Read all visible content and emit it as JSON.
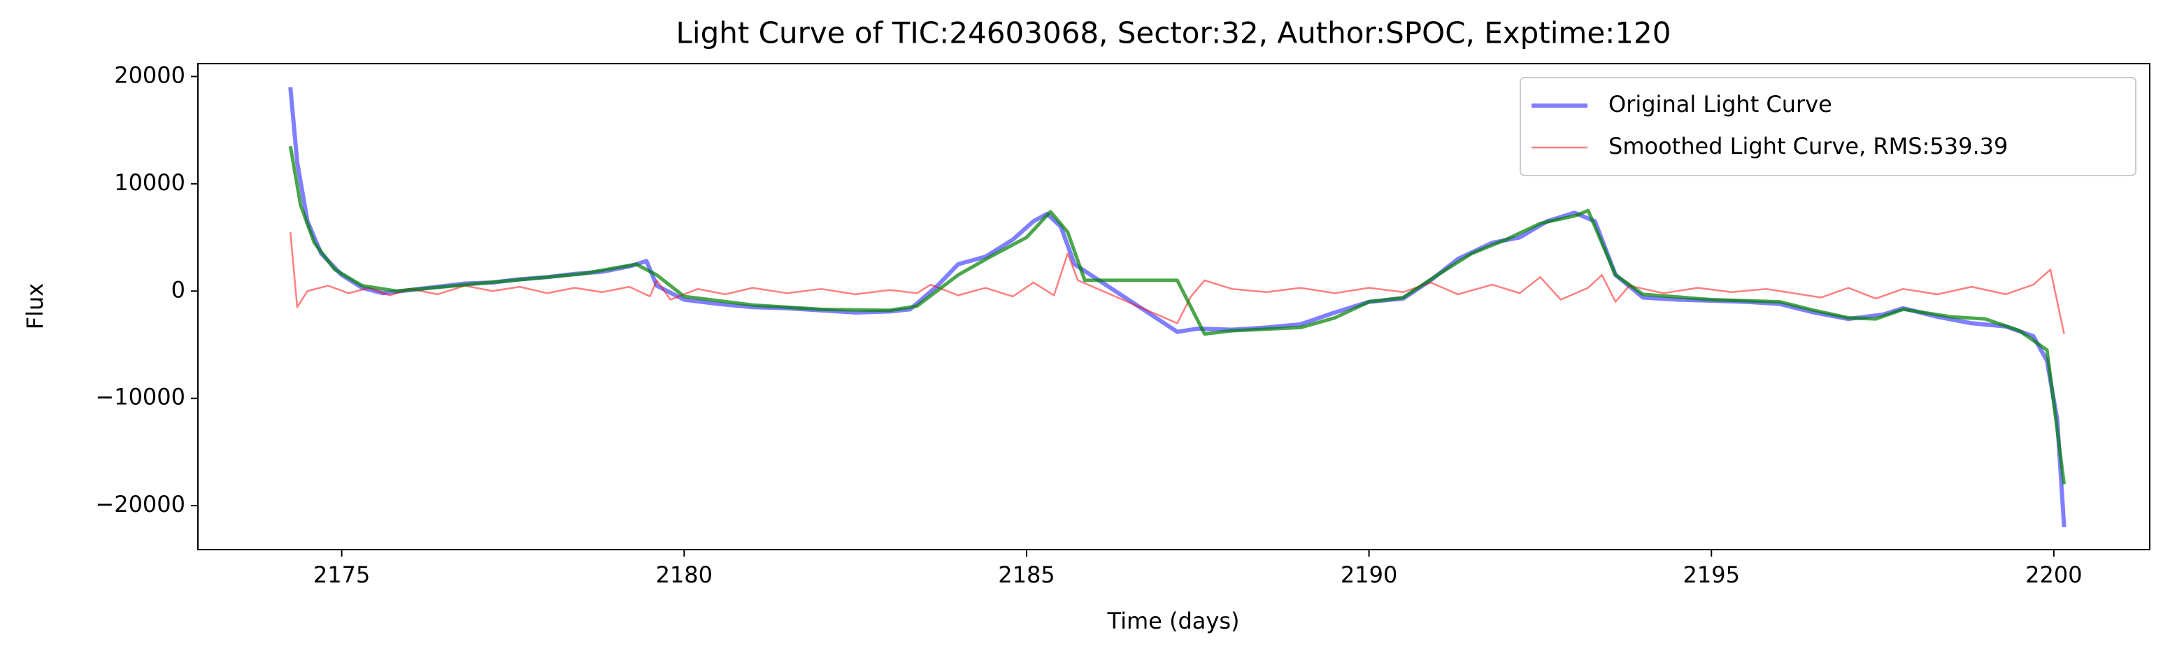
{
  "chart_data": {
    "type": "line",
    "title": "Light Curve of TIC:24603068, Sector:32, Author:SPOC, Exptime:120",
    "x_label": "Time (days)",
    "y_label": "Flux",
    "xlim": [
      2172.9,
      2201.4
    ],
    "ylim": [
      -24100,
      21200
    ],
    "xticks": [
      2175,
      2180,
      2185,
      2190,
      2195,
      2200
    ],
    "yticks": [
      {
        "value": -20000,
        "label": "−20000"
      },
      {
        "value": -10000,
        "label": "−10000"
      },
      0,
      10000,
      20000
    ],
    "grid": false,
    "legend": "upper right",
    "series": [
      {
        "name": "Original Light Curve",
        "color": "#0000ff",
        "x": [
          2174.25,
          2174.35,
          2174.5,
          2174.7,
          2175.0,
          2175.3,
          2175.6,
          2176.0,
          2176.4,
          2176.8,
          2177.2,
          2177.6,
          2178.0,
          2178.4,
          2178.8,
          2179.2,
          2179.45,
          2179.6,
          2180.0,
          2180.5,
          2181.0,
          2181.5,
          2182.0,
          2182.5,
          2183.0,
          2183.3,
          2183.7,
          2184.0,
          2184.4,
          2184.8,
          2185.1,
          2185.3,
          2185.5,
          2185.7,
          2187.2,
          2187.5,
          2188.0,
          2188.5,
          2189.0,
          2189.5,
          2190.0,
          2190.5,
          2190.9,
          2191.3,
          2191.8,
          2192.2,
          2192.6,
          2193.0,
          2193.3,
          2193.6,
          2194.0,
          2194.5,
          2195.0,
          2195.5,
          2196.0,
          2196.5,
          2197.0,
          2197.5,
          2197.8,
          2198.3,
          2198.8,
          2199.3,
          2199.7,
          2199.9,
          2200.05,
          2200.15
        ],
        "values": [
          19000,
          12000,
          6500,
          3500,
          1500,
          300,
          -200,
          100,
          400,
          700,
          800,
          1100,
          1300,
          1600,
          1800,
          2300,
          2800,
          500,
          -800,
          -1200,
          -1500,
          -1600,
          -1800,
          -2000,
          -1900,
          -1700,
          500,
          2500,
          3200,
          4800,
          6500,
          7200,
          6000,
          2500,
          -3800,
          -3500,
          -3600,
          -3400,
          -3100,
          -2000,
          -1000,
          -700,
          1000,
          3000,
          4500,
          5000,
          6500,
          7300,
          6500,
          1500,
          -600,
          -800,
          -900,
          -1000,
          -1200,
          -2000,
          -2600,
          -2200,
          -1600,
          -2400,
          -3000,
          -3300,
          -4200,
          -6500,
          -12000,
          -22000
        ]
      },
      {
        "name": "Smoothed Light Curve, RMS:539.39",
        "color": "#ff0000",
        "x": [
          2174.25,
          2174.35,
          2174.5,
          2174.8,
          2175.1,
          2175.4,
          2175.7,
          2176.0,
          2176.4,
          2176.8,
          2177.2,
          2177.6,
          2178.0,
          2178.4,
          2178.8,
          2179.2,
          2179.5,
          2179.6,
          2179.8,
          2180.2,
          2180.6,
          2181.0,
          2181.5,
          2182.0,
          2182.5,
          2183.0,
          2183.4,
          2183.6,
          2184.0,
          2184.4,
          2184.8,
          2185.1,
          2185.4,
          2185.6,
          2185.75,
          2187.2,
          2187.4,
          2187.6,
          2188.0,
          2188.5,
          2189.0,
          2189.5,
          2190.0,
          2190.5,
          2190.9,
          2191.3,
          2191.8,
          2192.2,
          2192.5,
          2192.8,
          2193.2,
          2193.4,
          2193.6,
          2193.8,
          2194.3,
          2194.8,
          2195.3,
          2195.8,
          2196.2,
          2196.6,
          2197.0,
          2197.4,
          2197.8,
          2198.3,
          2198.8,
          2199.3,
          2199.7,
          2199.95,
          2200.15
        ],
        "values": [
          5500,
          -1500,
          0,
          500,
          -200,
          300,
          -400,
          200,
          -300,
          500,
          0,
          400,
          -200,
          300,
          -100,
          400,
          -500,
          1000,
          -800,
          200,
          -300,
          300,
          -200,
          200,
          -300,
          100,
          -200,
          600,
          -400,
          300,
          -500,
          800,
          -400,
          3500,
          1000,
          -3000,
          -500,
          1000,
          200,
          -100,
          300,
          -200,
          300,
          -100,
          800,
          -300,
          600,
          -200,
          1300,
          -800,
          300,
          1500,
          -1000,
          500,
          -200,
          300,
          -100,
          200,
          -200,
          -600,
          300,
          -700,
          200,
          -300,
          400,
          -300,
          600,
          2000,
          -4000
        ]
      },
      {
        "color": "#008000",
        "x": [
          2174.25,
          2174.4,
          2174.6,
          2174.9,
          2175.3,
          2175.8,
          2176.5,
          2177.5,
          2178.5,
          2179.3,
          2179.6,
          2180.0,
          2181.0,
          2182.0,
          2183.0,
          2183.4,
          2184.0,
          2184.5,
          2185.0,
          2185.35,
          2185.6,
          2185.85,
          2187.2,
          2187.6,
          2188.0,
          2189.0,
          2189.5,
          2190.0,
          2190.5,
          2191.0,
          2191.5,
          2192.0,
          2192.5,
          2193.0,
          2193.2,
          2193.6,
          2194.0,
          2195.0,
          2196.0,
          2196.5,
          2197.0,
          2197.4,
          2197.8,
          2198.5,
          2199.0,
          2199.5,
          2199.9,
          2200.15
        ],
        "values": [
          13500,
          8000,
          4500,
          2000,
          500,
          0,
          400,
          1000,
          1600,
          2500,
          1500,
          -500,
          -1300,
          -1700,
          -1800,
          -1400,
          1500,
          3300,
          5000,
          7400,
          5500,
          1000,
          1000,
          -4000,
          -3700,
          -3400,
          -2500,
          -1000,
          -600,
          1500,
          3500,
          4800,
          6300,
          7000,
          7500,
          1500,
          -300,
          -800,
          -1000,
          -1800,
          -2500,
          -2600,
          -1700,
          -2400,
          -2600,
          -3700,
          -5500,
          -18000
        ]
      }
    ]
  }
}
